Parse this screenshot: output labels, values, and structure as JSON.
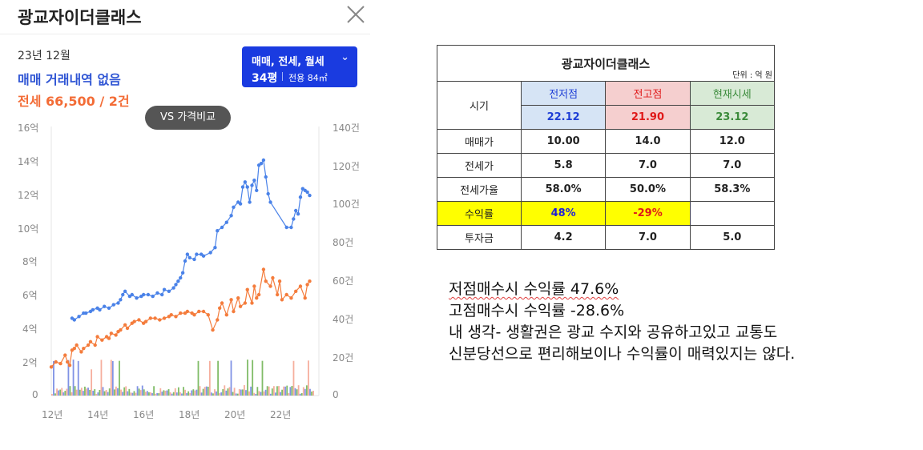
{
  "panel": {
    "title": "광교자이더클래스",
    "date": "23년 12월",
    "trade_status": "매매 거래내역 없음",
    "lease_info": "전세 66,500 / 2건",
    "selector": {
      "types": "매매, 전세, 월세",
      "pyeong": "34평",
      "area": "전용 84㎡"
    },
    "vs_button": "VS 가격비교",
    "icons": {
      "close": "close-icon",
      "dropdown": "chevron-down-icon"
    }
  },
  "chart_data": {
    "type": "line",
    "y_left_labels": [
      "16억",
      "14억",
      "12억",
      "10억",
      "8억",
      "6억",
      "4억",
      "2억",
      "0"
    ],
    "y_right_labels": [
      "140건",
      "120건",
      "100건",
      "80건",
      "60건",
      "40건",
      "20건",
      "0"
    ],
    "x_labels": [
      "12년",
      "14년",
      "16년",
      "18년",
      "20년",
      "22년"
    ],
    "ylim": [
      0,
      16
    ],
    "y2lim": [
      0,
      140
    ],
    "colors": {
      "sale": "#4a82e8",
      "lease": "#f47c3c",
      "vol_sale": "#6a7fe0",
      "vol_lease": "#f4a08c",
      "vol_rent": "#6ab04c"
    },
    "series": [
      {
        "x": [
          2012.9,
          2013.0,
          2013.2,
          2013.4,
          2013.5,
          2013.7,
          2013.8,
          2014.0,
          2014.1,
          2014.3,
          2014.5,
          2014.7,
          2014.9,
          2015.0,
          2015.1,
          2015.2,
          2015.4,
          2015.5,
          2015.7,
          2015.9,
          2016.0,
          2016.2,
          2016.4,
          2016.6,
          2016.8,
          2016.9,
          2017.1,
          2017.3,
          2017.4,
          2017.5,
          2017.6,
          2017.7,
          2017.8,
          2017.9,
          2018.0,
          2018.2,
          2018.3,
          2018.5,
          2018.6,
          2018.9,
          2019.1,
          2019.2,
          2019.4,
          2019.6,
          2019.8,
          2019.9,
          2020.1,
          2020.2,
          2020.3,
          2020.4,
          2020.5,
          2020.6,
          2020.7,
          2020.8,
          2020.9,
          2021.0,
          2021.1,
          2021.2,
          2021.3,
          2021.4,
          2021.5,
          2022.2,
          2022.4,
          2022.5,
          2022.6,
          2022.7,
          2022.8,
          2022.9,
          2023.0,
          2023.1,
          2023.2
        ],
        "y": [
          4.6,
          4.5,
          4.7,
          4.9,
          4.9,
          5.0,
          5.1,
          5.2,
          5.1,
          5.3,
          5.2,
          5.4,
          5.5,
          5.7,
          6.0,
          6.2,
          5.9,
          6.0,
          5.8,
          5.9,
          6.0,
          6.0,
          5.9,
          6.1,
          6.0,
          6.3,
          6.2,
          6.4,
          6.6,
          6.8,
          7.0,
          7.3,
          8.0,
          8.4,
          8.2,
          8.1,
          8.4,
          8.4,
          8.3,
          8.5,
          8.8,
          9.8,
          10.0,
          10.3,
          10.7,
          11.2,
          11.5,
          11.4,
          12.4,
          12.7,
          12.4,
          11.5,
          12.5,
          12.8,
          12.2,
          13.7,
          13.8,
          14.0,
          13.0,
          12.0,
          11.5,
          10.0,
          10.0,
          10.5,
          11.0,
          10.8,
          11.8,
          12.3,
          12.2,
          12.1,
          11.9
        ]
      },
      {
        "x": [
          2012.0,
          2012.2,
          2012.4,
          2012.6,
          2012.7,
          2012.8,
          2012.9,
          2013.0,
          2013.1,
          2013.3,
          2013.4,
          2013.6,
          2013.7,
          2013.9,
          2014.0,
          2014.2,
          2014.4,
          2014.5,
          2014.6,
          2014.8,
          2014.9,
          2015.0,
          2015.2,
          2015.3,
          2015.5,
          2015.6,
          2015.8,
          2016.0,
          2016.1,
          2016.3,
          2016.5,
          2016.7,
          2016.9,
          2017.1,
          2017.2,
          2017.4,
          2017.6,
          2017.8,
          2017.9,
          2018.1,
          2018.2,
          2018.4,
          2018.6,
          2018.8,
          2019.0,
          2019.2,
          2019.3,
          2019.4,
          2019.6,
          2019.8,
          2019.9,
          2020.1,
          2020.2,
          2020.4,
          2020.5,
          2020.7,
          2020.8,
          2020.9,
          2021.0,
          2021.2,
          2021.3,
          2021.5,
          2021.6,
          2021.8,
          2021.9,
          2022.0,
          2022.2,
          2022.4,
          2022.6,
          2022.8,
          2023.0,
          2023.1,
          2023.2
        ],
        "y": [
          1.7,
          2.0,
          1.9,
          2.4,
          2.0,
          1.8,
          2.7,
          2.8,
          3.0,
          2.6,
          2.8,
          3.0,
          3.2,
          3.0,
          3.5,
          3.3,
          3.5,
          3.4,
          3.7,
          3.6,
          3.8,
          3.9,
          4.2,
          4.0,
          4.3,
          4.4,
          4.5,
          4.3,
          4.4,
          4.6,
          4.6,
          4.5,
          4.6,
          4.7,
          4.8,
          4.7,
          4.9,
          4.9,
          5.0,
          4.9,
          4.8,
          5.0,
          5.0,
          4.8,
          3.9,
          4.5,
          5.2,
          5.5,
          4.8,
          5.7,
          5.0,
          5.8,
          5.3,
          5.5,
          6.3,
          5.5,
          6.5,
          5.8,
          6.0,
          7.5,
          6.8,
          6.5,
          7.0,
          6.0,
          6.8,
          5.7,
          6.0,
          5.8,
          6.2,
          6.5,
          5.8,
          6.6,
          6.8
        ]
      }
    ]
  },
  "table": {
    "title": "광교자이더클래스",
    "unit": "단위 : 억 원",
    "period_label": "시기",
    "headers": [
      "전저점",
      "전고점",
      "현재시세"
    ],
    "dates": [
      "22.12",
      "21.90",
      "23.12"
    ],
    "rows": [
      {
        "label": "매매가",
        "values": [
          "10.00",
          "14.0",
          "12.0"
        ]
      },
      {
        "label": "전세가",
        "values": [
          "5.8",
          "7.0",
          "7.0"
        ]
      },
      {
        "label": "전세가율",
        "values": [
          "58.0%",
          "50.0%",
          "58.3%"
        ]
      },
      {
        "label": "수익률",
        "values": [
          "48%",
          "-29%",
          ""
        ]
      },
      {
        "label": "투자금",
        "values": [
          "4.2",
          "7.0",
          "5.0"
        ]
      }
    ]
  },
  "notes": {
    "line1": "저점매수시 수익률 47.6%",
    "line2": "고점매수시 수익률 -28.6%",
    "line3": "내 생각- 생활권은 광교 수지와 공유하고있고 교통도",
    "line4": "신분당선으로 편리해보이나 수익률이 매력있지는 않다."
  }
}
